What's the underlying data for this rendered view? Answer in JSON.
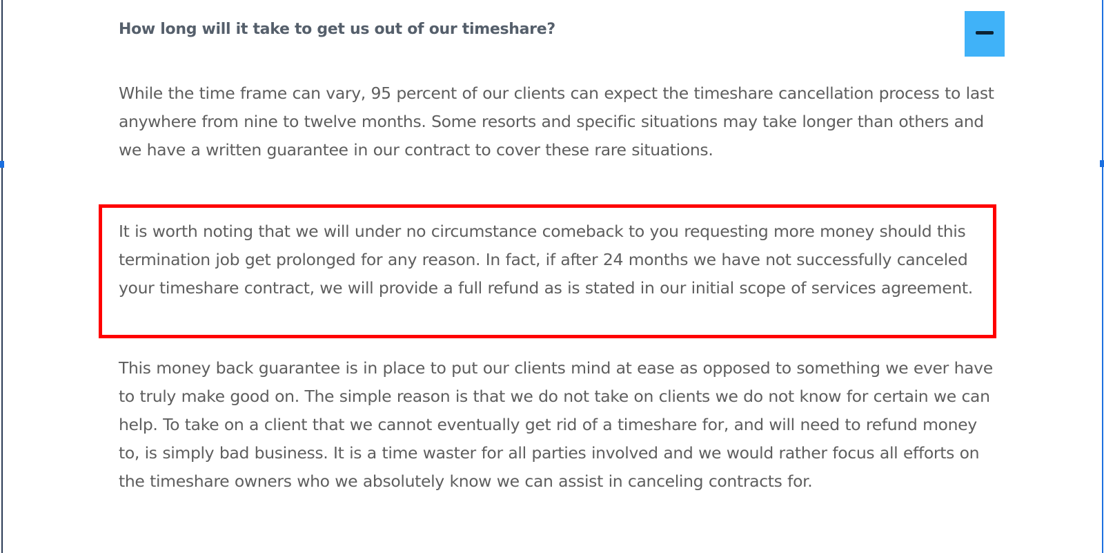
{
  "faq": {
    "question": "How long will it take to get us out of our timeshare?",
    "toggle_icon": "minus-icon",
    "toggle_color": "#40b2f8",
    "highlight_color": "#ff0000",
    "paragraphs": [
      "While the time frame can vary, 95 percent of our clients can expect the timeshare cancellation process to last anywhere from nine to twelve months.  Some resorts and specific situations may take longer than others and we have a written guarantee in our contract to cover these rare situations.",
      "It is worth noting that we will under no circumstance comeback to you requesting more money should this termination job get prolonged for any reason.  In fact, if after 24 months we have not successfully canceled your timeshare contract, we will provide a full refund as is stated in our initial scope of services agreement.",
      "This money back guarantee is in place to put our clients mind at ease as opposed to something we ever have to truly make good on.  The simple reason is that we do not take on clients we do not know for certain we can help.  To take on a client that we cannot eventually get rid of a timeshare for, and will need to refund money to, is simply bad business.  It is a time waster for all parties involved and we would rather focus all efforts on the timeshare owners who we absolutely know we can assist in canceling contracts for."
    ]
  }
}
